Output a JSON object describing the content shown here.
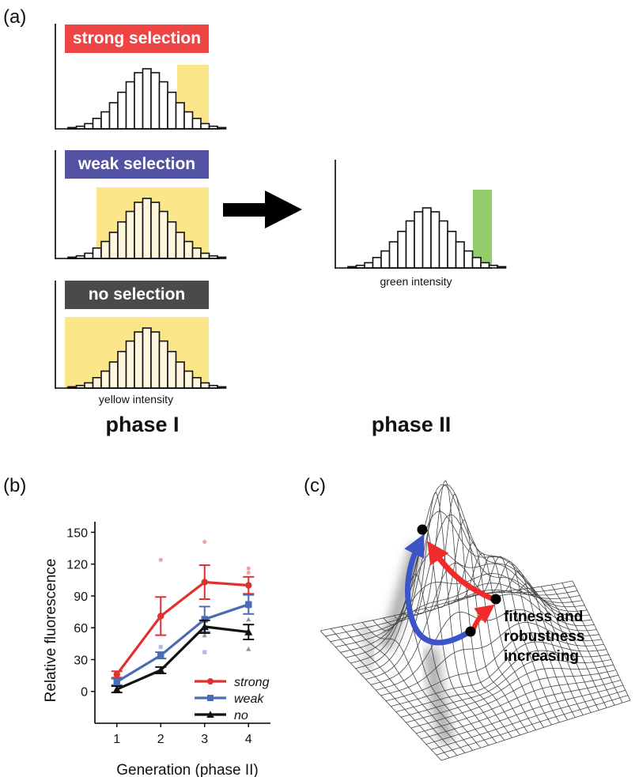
{
  "figure": {
    "panel_a": {
      "label": "(a)",
      "phase1_title": "phase I",
      "phase2_title": "phase II",
      "phase1_xlabel": "yellow intensity",
      "phase2_xlabel": "green intensity",
      "selection_boxes": [
        {
          "label": "strong selection",
          "color": "#ef4444"
        },
        {
          "label": "weak selection",
          "color": "#5254a3"
        },
        {
          "label": "no selection",
          "color": "#4a4a4a"
        }
      ],
      "histogram_counts": [
        1,
        2,
        4,
        8,
        13,
        20,
        28,
        36,
        43,
        46,
        43,
        36,
        28,
        20,
        13,
        8,
        4,
        2,
        1
      ],
      "highlight_colors": {
        "yellow": "#fbe68a",
        "green": "#92cc6b"
      },
      "arrow_icon": "right-arrow-icon"
    },
    "panel_b": {
      "label": "(b)"
    },
    "panel_c": {
      "label": "(c)",
      "annotation": [
        "fitness and",
        "robustness",
        "increasing"
      ]
    }
  },
  "chart_data": {
    "type": "line",
    "xlabel": "Generation (phase II)",
    "ylabel": "Relative fluorescence",
    "x": [
      1,
      2,
      3,
      4
    ],
    "yticks": [
      0,
      30,
      60,
      90,
      120,
      150
    ],
    "ylim": [
      -30,
      160
    ],
    "xlim": [
      0.5,
      4.5
    ],
    "series": [
      {
        "name": "strong",
        "color": "#e03030",
        "marker": "circle",
        "values": [
          16,
          71,
          103,
          100
        ],
        "errors": [
          3,
          18,
          16,
          8
        ],
        "points": [
          [
            3,
            141
          ],
          [
            2,
            124
          ],
          [
            4,
            116
          ],
          [
            4,
            112
          ]
        ]
      },
      {
        "name": "weak",
        "color": "#4a6bb5",
        "marker": "square",
        "values": [
          9,
          34,
          68,
          82
        ],
        "errors": [
          3,
          3,
          12,
          9
        ],
        "points": [
          [
            3,
            37
          ],
          [
            2,
            42
          ],
          [
            4,
            80
          ]
        ]
      },
      {
        "name": "no",
        "color": "#111111",
        "marker": "triangle",
        "values": [
          2,
          20,
          61,
          56
        ],
        "errors": [
          3,
          3,
          6,
          7
        ],
        "points": [
          [
            3,
            53
          ],
          [
            4,
            40
          ],
          [
            4,
            68
          ]
        ]
      }
    ],
    "legend_position": "bottom-right"
  }
}
